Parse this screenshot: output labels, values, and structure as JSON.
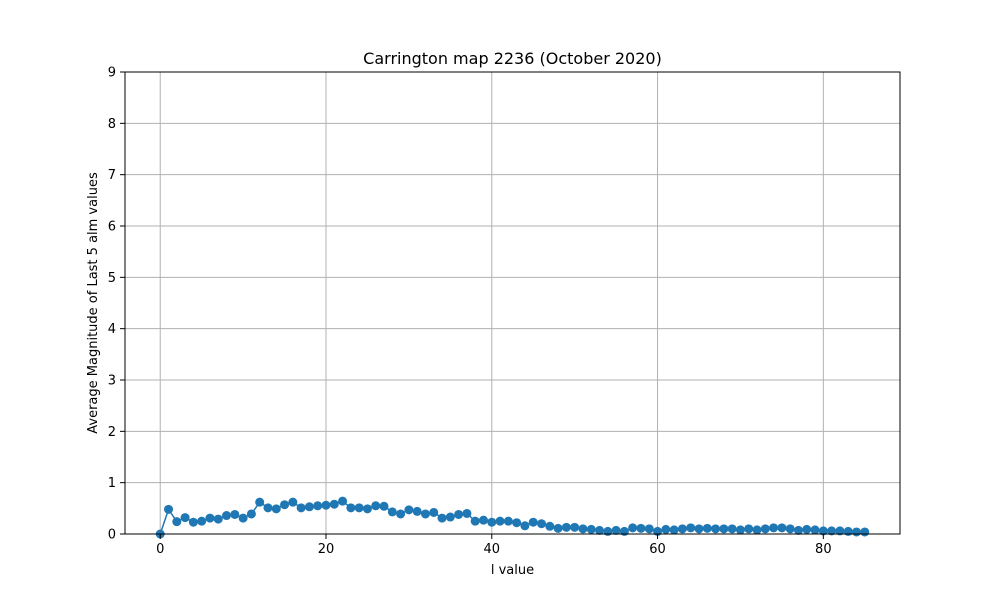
{
  "chart_data": {
    "type": "line",
    "title": "Carrington map 2236 (October 2020)",
    "xlabel": "l value",
    "ylabel": "Average Magnitude of Last 5 alm values",
    "xlim": [
      -4.25,
      89.25
    ],
    "ylim": [
      0,
      9
    ],
    "xticks": [
      0,
      20,
      40,
      60,
      80
    ],
    "yticks": [
      0,
      1,
      2,
      3,
      4,
      5,
      6,
      7,
      8,
      9
    ],
    "grid": true,
    "marker": "circle",
    "color": "#1f77b4",
    "series": [
      {
        "x": [
          0,
          1,
          2,
          3,
          4,
          5,
          6,
          7,
          8,
          9,
          10,
          11,
          12,
          13,
          14,
          15,
          16,
          17,
          18,
          19,
          20,
          21,
          22,
          23,
          24,
          25,
          26,
          27,
          28,
          29,
          30,
          31,
          32,
          33,
          34,
          35,
          36,
          37,
          38,
          39,
          40,
          41,
          42,
          43,
          44,
          45,
          46,
          47,
          48,
          49,
          50,
          51,
          52,
          53,
          54,
          55,
          56,
          57,
          58,
          59,
          60,
          61,
          62,
          63,
          64,
          65,
          66,
          67,
          68,
          69,
          70,
          71,
          72,
          73,
          74,
          75,
          76,
          77,
          78,
          79,
          80,
          81,
          82,
          83,
          84,
          85
        ],
        "y": [
          0.0,
          0.48,
          0.24,
          0.32,
          0.23,
          0.25,
          0.31,
          0.29,
          0.36,
          0.38,
          0.31,
          0.39,
          0.62,
          0.51,
          0.49,
          0.57,
          0.62,
          0.51,
          0.53,
          0.55,
          0.56,
          0.58,
          0.64,
          0.51,
          0.51,
          0.49,
          0.55,
          0.54,
          0.43,
          0.39,
          0.47,
          0.44,
          0.39,
          0.42,
          0.31,
          0.33,
          0.38,
          0.4,
          0.25,
          0.27,
          0.23,
          0.25,
          0.25,
          0.22,
          0.16,
          0.23,
          0.2,
          0.15,
          0.11,
          0.13,
          0.13,
          0.1,
          0.09,
          0.07,
          0.05,
          0.07,
          0.05,
          0.12,
          0.11,
          0.1,
          0.05,
          0.09,
          0.08,
          0.1,
          0.12,
          0.1,
          0.11,
          0.1,
          0.1,
          0.1,
          0.08,
          0.1,
          0.08,
          0.1,
          0.12,
          0.12,
          0.1,
          0.07,
          0.09,
          0.08,
          0.06,
          0.06,
          0.06,
          0.05,
          0.04,
          0.04
        ]
      }
    ]
  }
}
